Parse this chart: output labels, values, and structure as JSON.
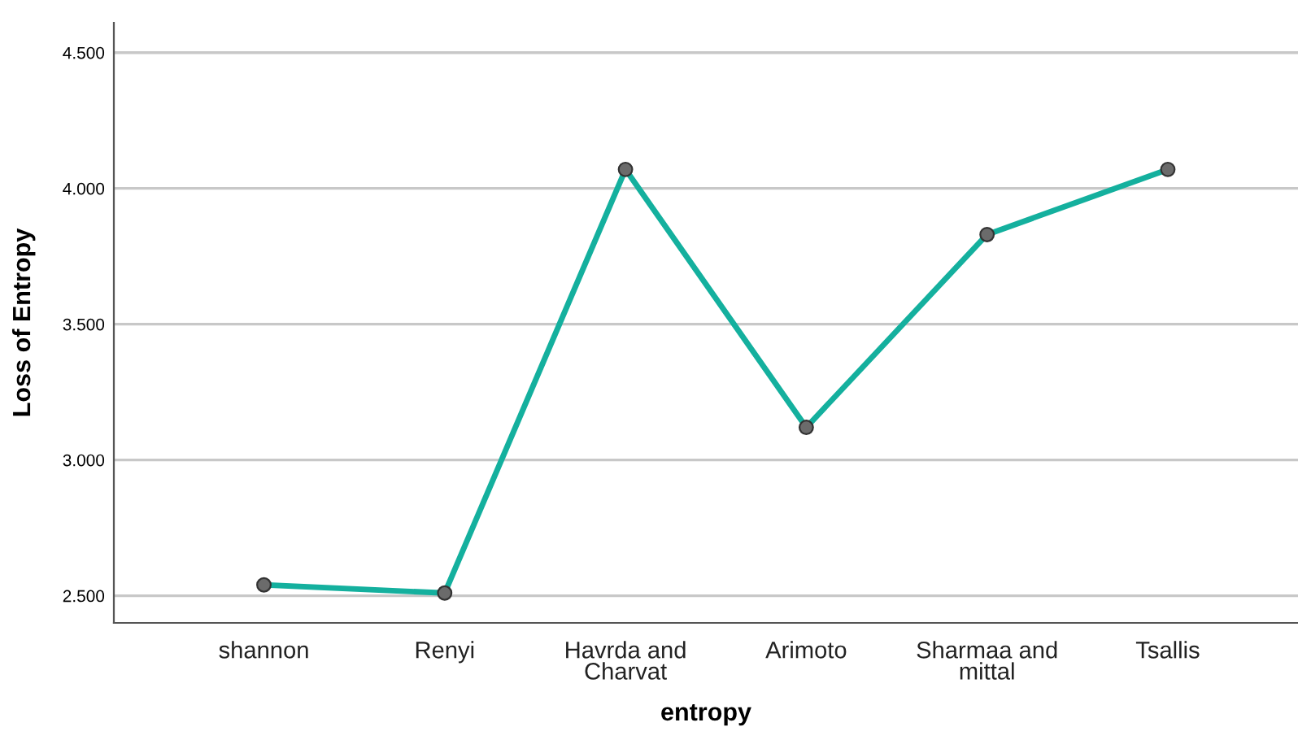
{
  "chart_data": {
    "type": "line",
    "xlabel": "entropy",
    "ylabel": "Loss of Entropy",
    "categories": [
      "shannon",
      "Renyi",
      "Havrda and\nCharvat",
      "Arimoto",
      "Sharmaa and\nmittal",
      "Tsallis"
    ],
    "series": [
      {
        "color": "#14b09e",
        "values": [
          2.54,
          2.51,
          4.07,
          3.12,
          3.83,
          4.07
        ]
      }
    ],
    "ylim": [
      2.4,
      4.61
    ],
    "yticks": [
      {
        "value": 2.5,
        "label": "2.500"
      },
      {
        "value": 3.0,
        "label": "3.000"
      },
      {
        "value": 3.5,
        "label": "3.500"
      },
      {
        "value": 4.0,
        "label": "4.000"
      },
      {
        "value": 4.5,
        "label": "4.500"
      }
    ],
    "grid": "y",
    "marker": "circle",
    "line_style": "solid"
  }
}
